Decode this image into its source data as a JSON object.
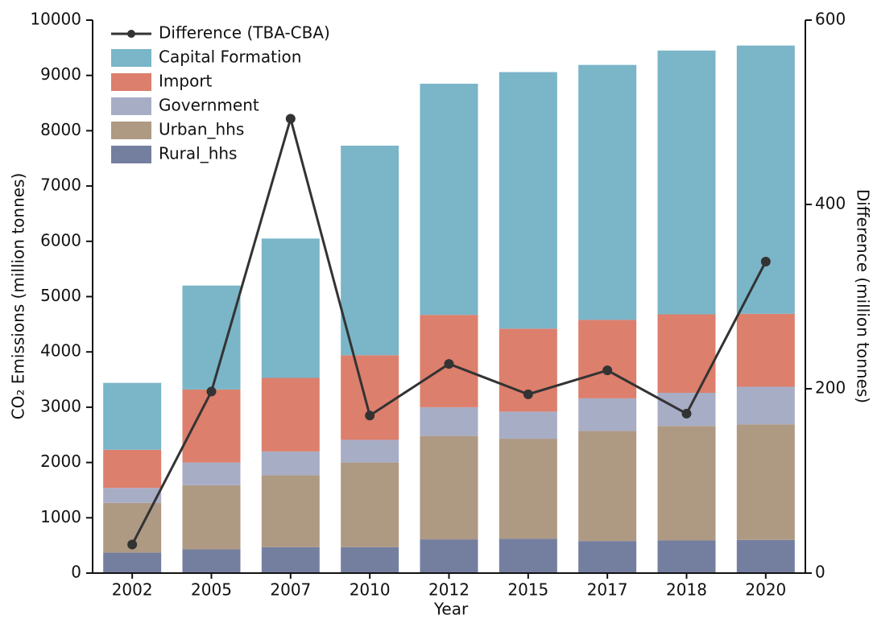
{
  "chart_data": {
    "type": "bar",
    "stacked": true,
    "x_label": "Year",
    "y_label": "CO₂ Emissions (million tonnes)",
    "y2_label": "Difference (million tonnes)",
    "categories": [
      "2002",
      "2005",
      "2007",
      "2010",
      "2012",
      "2015",
      "2017",
      "2018",
      "2020"
    ],
    "series": [
      {
        "name": "Rural_hhs",
        "color": "#747fa0",
        "values": [
          370,
          430,
          470,
          470,
          610,
          620,
          580,
          590,
          600
        ]
      },
      {
        "name": "Urban_hhs",
        "color": "#ae9983",
        "values": [
          900,
          1160,
          1300,
          1530,
          1870,
          1810,
          1990,
          2070,
          2090
        ]
      },
      {
        "name": "Government",
        "color": "#a8adc6",
        "values": [
          270,
          410,
          430,
          410,
          520,
          490,
          590,
          600,
          680
        ]
      },
      {
        "name": "Import",
        "color": "#dc7f6c",
        "values": [
          690,
          1320,
          1330,
          1530,
          1670,
          1500,
          1420,
          1420,
          1320
        ]
      },
      {
        "name": "Capital Formation",
        "color": "#7ab5c8",
        "values": [
          1210,
          1880,
          2520,
          3790,
          4180,
          4640,
          4610,
          4770,
          4850
        ]
      },
      {
        "name": "Difference (TBA-CBA)",
        "color": "#333333",
        "type": "line",
        "axis": "y2",
        "values": [
          31,
          197,
          493,
          171,
          227,
          194,
          220,
          173,
          338
        ]
      }
    ],
    "ylim": [
      0,
      10000
    ],
    "yticks": [
      0,
      1000,
      2000,
      3000,
      4000,
      5000,
      6000,
      7000,
      8000,
      9000,
      10000
    ],
    "y2lim": [
      0,
      600
    ],
    "y2ticks": [
      0,
      200,
      400,
      600
    ],
    "legend": "top-left"
  }
}
